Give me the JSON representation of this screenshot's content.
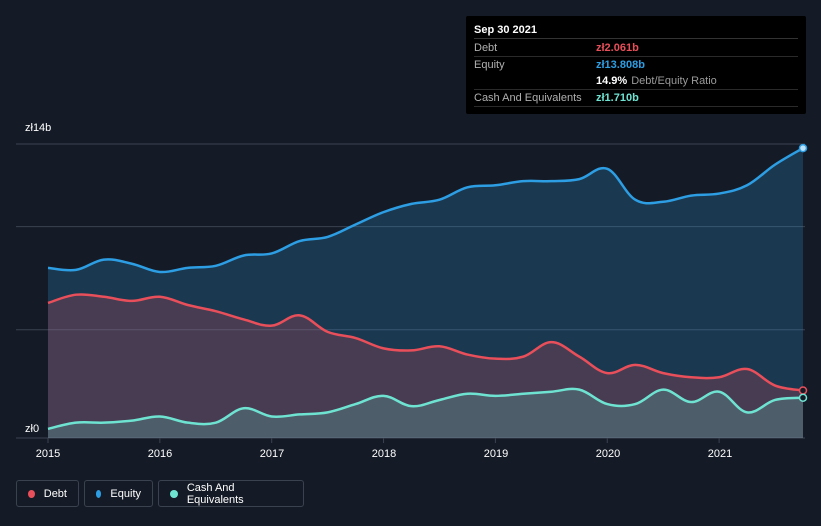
{
  "tooltip": {
    "date": "Sep 30 2021",
    "debt_label": "Debt",
    "debt_value": "zł2.061b",
    "equity_label": "Equity",
    "equity_value": "zł13.808b",
    "ratio_value": "14.9%",
    "ratio_label": "Debt/Equity Ratio",
    "cash_label": "Cash And Equivalents",
    "cash_value": "zł1.710b"
  },
  "legend": {
    "debt": "Debt",
    "equity": "Equity",
    "cash": "Cash And Equivalents"
  },
  "colors": {
    "background": "#151b26",
    "debt": "#e84f5a",
    "equity": "#2d9ee3",
    "cash": "#6fe3d2",
    "grid": "#3a4250"
  },
  "chart_data": {
    "type": "area",
    "title": "",
    "xlabel": "",
    "ylabel": "",
    "ylim": [
      0,
      14
    ],
    "y_ticks": [
      {
        "value": 14,
        "label": "zł14b"
      },
      {
        "value": 0,
        "label": "zł0"
      }
    ],
    "x_ticks": [
      {
        "value": 2015,
        "label": "2015"
      },
      {
        "value": 2016,
        "label": "2016"
      },
      {
        "value": 2017,
        "label": "2017"
      },
      {
        "value": 2018,
        "label": "2018"
      },
      {
        "value": 2019,
        "label": "2019"
      },
      {
        "value": 2020,
        "label": "2020"
      },
      {
        "value": 2021,
        "label": "2021"
      }
    ],
    "x": [
      2015.0,
      2015.25,
      2015.5,
      2015.75,
      2016.0,
      2016.25,
      2016.5,
      2016.75,
      2017.0,
      2017.25,
      2017.5,
      2017.75,
      2018.0,
      2018.25,
      2018.5,
      2018.75,
      2019.0,
      2019.25,
      2019.5,
      2019.75,
      2020.0,
      2020.25,
      2020.5,
      2020.75,
      2021.0,
      2021.25,
      2021.5,
      2021.75
    ],
    "series": [
      {
        "name": "Equity",
        "values": [
          8.0,
          7.9,
          8.4,
          8.2,
          7.8,
          8.0,
          8.1,
          8.6,
          8.7,
          9.3,
          9.5,
          10.1,
          10.7,
          11.1,
          11.3,
          11.9,
          12.0,
          12.2,
          12.2,
          12.3,
          12.8,
          11.3,
          11.2,
          11.5,
          11.6,
          12.0,
          13.0,
          13.8
        ]
      },
      {
        "name": "Debt",
        "values": [
          6.3,
          6.7,
          6.6,
          6.4,
          6.6,
          6.2,
          5.9,
          5.5,
          5.2,
          5.7,
          4.9,
          4.6,
          4.1,
          4.0,
          4.2,
          3.8,
          3.6,
          3.7,
          4.4,
          3.7,
          2.9,
          3.3,
          2.9,
          2.7,
          2.7,
          3.1,
          2.3,
          2.06
        ]
      },
      {
        "name": "Cash And Equivalents",
        "values": [
          0.2,
          0.5,
          0.5,
          0.6,
          0.8,
          0.5,
          0.5,
          1.2,
          0.8,
          0.9,
          1.0,
          1.4,
          1.8,
          1.3,
          1.6,
          1.9,
          1.8,
          1.9,
          2.0,
          2.1,
          1.4,
          1.4,
          2.1,
          1.5,
          2.0,
          1.0,
          1.6,
          1.71
        ]
      }
    ],
    "legend_position": "bottom-left"
  }
}
